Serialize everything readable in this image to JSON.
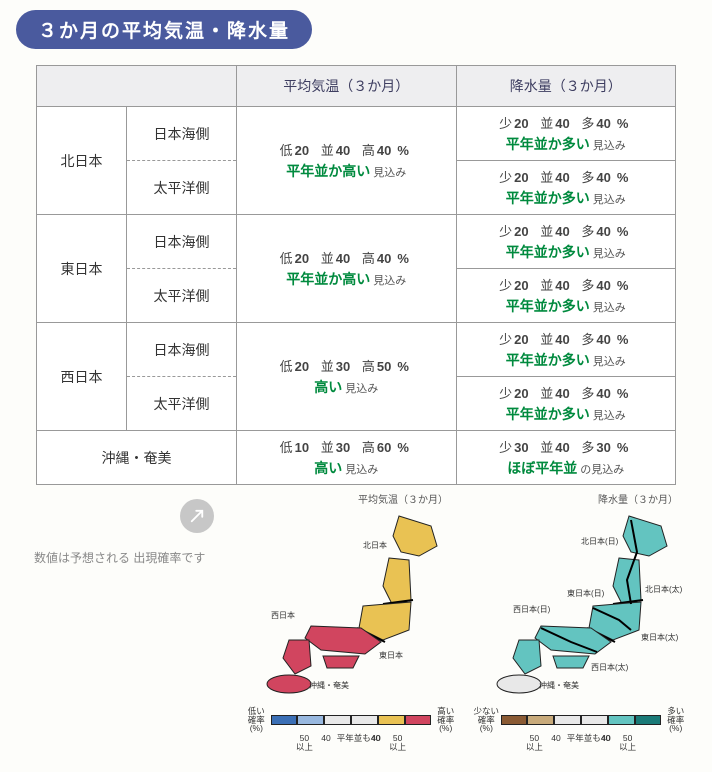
{
  "title": "３か月の平均気温・降水量",
  "note": {
    "text": "数値は予想される\n出現確率です"
  },
  "headers": {
    "blank": "",
    "temp": "平均気温（３か月）",
    "precip": "降水量（３か月）"
  },
  "probLabels": {
    "temp": {
      "low": "低",
      "mid": "並",
      "high": "高"
    },
    "precip": {
      "low": "少",
      "mid": "並",
      "high": "多"
    }
  },
  "suffix": {
    "normal": "見込み",
    "hobo": "の見込み"
  },
  "rows": [
    {
      "region": "北日本",
      "sides": [
        {
          "side": "日本海側",
          "temp": null,
          "precip": {
            "low": 20,
            "mid": 40,
            "high": 40,
            "pct": "%",
            "phrase": "平年並か多い",
            "suffixKey": "normal"
          }
        },
        {
          "side": "太平洋側",
          "temp": null,
          "precip": {
            "low": 20,
            "mid": 40,
            "high": 40,
            "pct": "%",
            "phrase": "平年並か多い",
            "suffixKey": "normal"
          }
        }
      ],
      "tempMerged": {
        "low": 20,
        "mid": 40,
        "high": 40,
        "pct": "%",
        "phrase": "平年並か高い",
        "suffixKey": "normal"
      }
    },
    {
      "region": "東日本",
      "sides": [
        {
          "side": "日本海側",
          "precip": {
            "low": 20,
            "mid": 40,
            "high": 40,
            "pct": "%",
            "phrase": "平年並か多い",
            "suffixKey": "normal"
          }
        },
        {
          "side": "太平洋側",
          "precip": {
            "low": 20,
            "mid": 40,
            "high": 40,
            "pct": "%",
            "phrase": "平年並か多い",
            "suffixKey": "normal"
          }
        }
      ],
      "tempMerged": {
        "low": 20,
        "mid": 40,
        "high": 40,
        "pct": "%",
        "phrase": "平年並か高い",
        "suffixKey": "normal"
      }
    },
    {
      "region": "西日本",
      "sides": [
        {
          "side": "日本海側",
          "precip": {
            "low": 20,
            "mid": 40,
            "high": 40,
            "pct": "%",
            "phrase": "平年並か多い",
            "suffixKey": "normal"
          }
        },
        {
          "side": "太平洋側",
          "precip": {
            "low": 20,
            "mid": 40,
            "high": 40,
            "pct": "%",
            "phrase": "平年並か多い",
            "suffixKey": "normal"
          }
        }
      ],
      "tempMerged": {
        "low": 20,
        "mid": 30,
        "high": 50,
        "pct": "%",
        "phrase": "高い",
        "suffixKey": "normal"
      }
    },
    {
      "region": "沖縄・奄美",
      "sides": [],
      "tempMerged": {
        "low": 10,
        "mid": 30,
        "high": 60,
        "pct": "%",
        "phrase": "高い",
        "suffixKey": "normal"
      },
      "precipMerged": {
        "low": 30,
        "mid": 40,
        "high": 30,
        "pct": "%",
        "phrase": "ほぼ平年並",
        "suffixKey": "hobo"
      }
    }
  ],
  "maps": {
    "temp": {
      "title": "平均気温（３か月）",
      "regionLabels": [
        "北日本",
        "東日本",
        "西日本",
        "沖縄・奄美"
      ],
      "colors": {
        "north": "#e9c253",
        "east": "#e9c253",
        "west": "#d1455f",
        "okinawa": "#d1455f"
      },
      "legend": {
        "leftLabel": "低い\n確率\n(%)",
        "rightLabel": "高い\n確率\n(%)",
        "ticks": [
          "",
          "50\n以上",
          "40",
          "平年並も40",
          "40",
          "50\n以上",
          ""
        ],
        "swatches": [
          "#3b6fb5",
          "#98b8df",
          "#e8e8e8",
          "#e8e8e8",
          "#e9c253",
          "#d1455f"
        ]
      }
    },
    "precip": {
      "title": "降水量（３か月）",
      "regionLabels": [
        "北日本(日)",
        "北日本(太)",
        "東日本(日)",
        "東日本(太)",
        "西日本(日)",
        "西日本(太)",
        "沖縄・奄美"
      ],
      "colors": {
        "all": "#63c4c0",
        "okinawa": "#e8e8e8"
      },
      "legend": {
        "leftLabel": "少ない\n確率\n(%)",
        "rightLabel": "多い\n確率\n(%)",
        "ticks": [
          "",
          "50\n以上",
          "40",
          "平年並も40",
          "40",
          "50\n以上",
          ""
        ],
        "swatches": [
          "#8a5a33",
          "#c8aa7a",
          "#e8e8e8",
          "#e8e8e8",
          "#63c4c0",
          "#1a7a77"
        ]
      }
    }
  },
  "style": {
    "accentHeader": "#4a5a9e",
    "phraseColor": "#008a3e",
    "borderColor": "#999999"
  }
}
